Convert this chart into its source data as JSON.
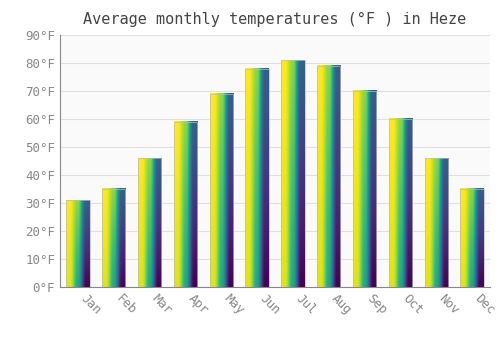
{
  "title": "Average monthly temperatures (°F ) in Heze",
  "months": [
    "Jan",
    "Feb",
    "Mar",
    "Apr",
    "May",
    "Jun",
    "Jul",
    "Aug",
    "Sep",
    "Oct",
    "Nov",
    "Dec"
  ],
  "values": [
    31,
    35,
    46,
    59,
    69,
    78,
    81,
    79,
    70,
    60,
    46,
    35
  ],
  "bar_color_bottom": "#F5A623",
  "bar_color_top": "#FFD966",
  "bar_edge_color": "#BBBBBB",
  "background_color": "#FFFFFF",
  "plot_bg_color": "#FAFAFA",
  "grid_color": "#E0E0E0",
  "text_color": "#888888",
  "title_color": "#444444",
  "ylim": [
    0,
    90
  ],
  "yticks": [
    0,
    10,
    20,
    30,
    40,
    50,
    60,
    70,
    80,
    90
  ],
  "title_fontsize": 11,
  "tick_fontsize": 9,
  "font_family": "monospace"
}
